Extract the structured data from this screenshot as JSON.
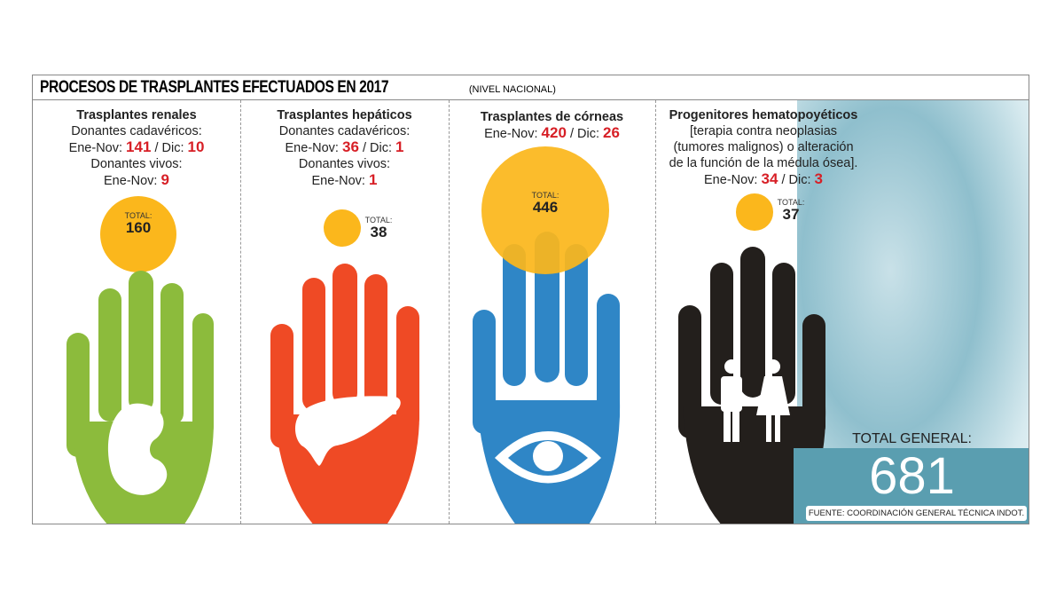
{
  "header": {
    "title": "PROCESOS DE TRASPLANTES EFECTUADOS EN 2017",
    "subtitle": "(NIVEL NACIONAL)"
  },
  "columns": [
    {
      "title": "Trasplantes renales",
      "line1": "Donantes cadavéricos:",
      "en_label": "Ene-Nov:",
      "en": "141",
      "dic_label": "/ Dic:",
      "dic": "10",
      "line3": "Donantes vivos:",
      "en2_label": "Ene-Nov:",
      "en2": "9",
      "total_label": "TOTAL:",
      "total": "160",
      "color": "#8cbb3c"
    },
    {
      "title": "Trasplantes hepáticos",
      "line1": "Donantes cadavéricos:",
      "en_label": "Ene-Nov:",
      "en": "36",
      "dic_label": "/ Dic:",
      "dic": "1",
      "line3": "Donantes vivos:",
      "en2_label": "Ene-Nov:",
      "en2": "1",
      "total_label": "TOTAL:",
      "total": "38",
      "color": "#ef4a25"
    },
    {
      "title": "Trasplantes de córneas",
      "en_label": "Ene-Nov:",
      "en": "420",
      "dic_label": "/ Dic:",
      "dic": "26",
      "total_label": "TOTAL:",
      "total": "446",
      "color": "#2f86c6"
    },
    {
      "title": "Progenitores hematopoyéticos",
      "desc1": "[terapia contra neoplasias",
      "desc2": "(tumores malignos) o alteración",
      "desc3": "de la función de la médula ósea].",
      "en_label": "Ene-Nov:",
      "en": "34",
      "dic_label": "/ Dic:",
      "dic": "3",
      "total_label": "TOTAL:",
      "total": "37",
      "color": "#231f1c"
    }
  ],
  "total_general": {
    "label": "TOTAL GENERAL:",
    "value": "681"
  },
  "source": "FUENTE: COORDINACIÓN GENERAL TÉCNICA INDOT.",
  "chart_data": {
    "type": "bubble",
    "title": "PROCESOS DE TRASPLANTES EFECTUADOS EN 2017",
    "categories": [
      "Trasplantes renales",
      "Trasplantes hepáticos",
      "Trasplantes de córneas",
      "Progenitores hematopoyéticos"
    ],
    "values": [
      160,
      38,
      446,
      37
    ],
    "total": 681
  }
}
